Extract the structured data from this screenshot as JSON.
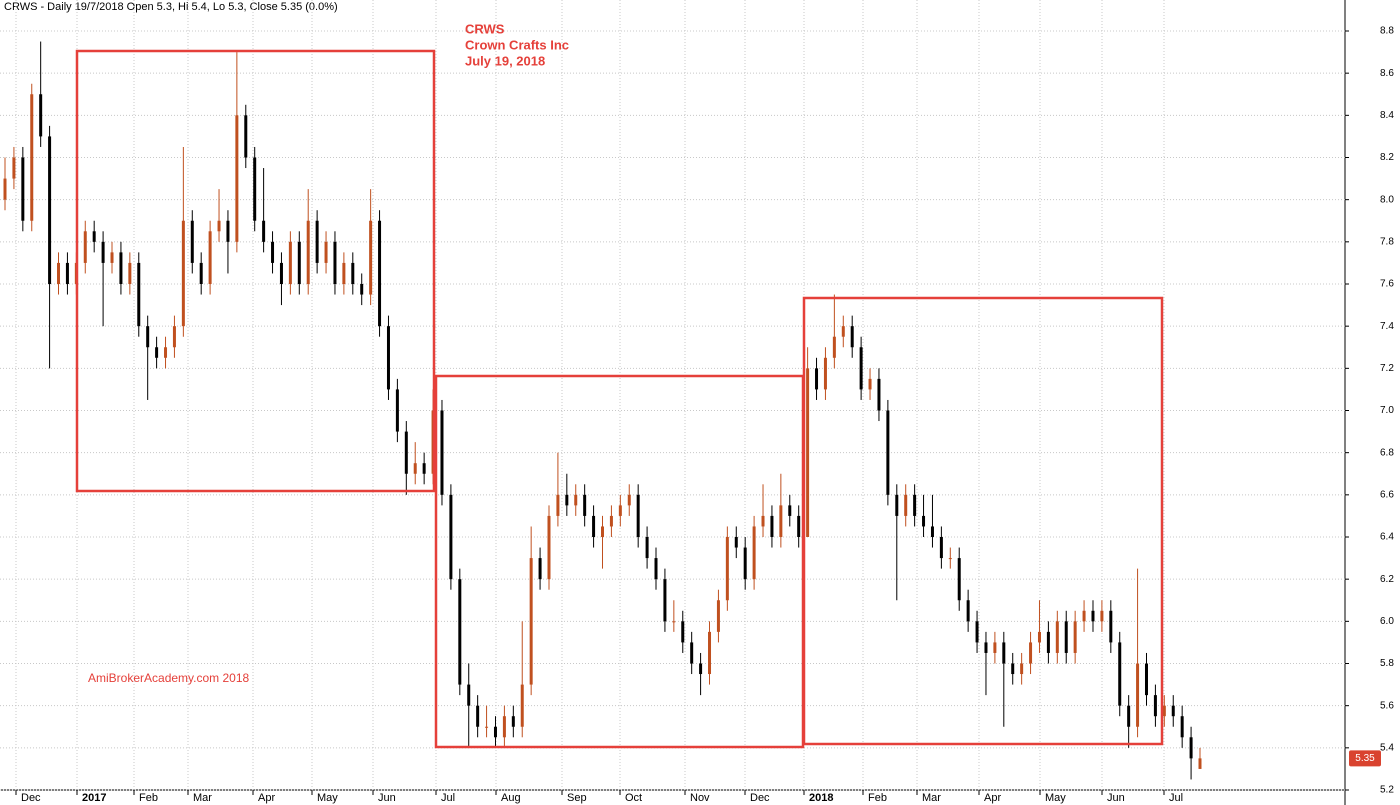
{
  "chart_data": {
    "type": "candlestick",
    "header": "CRWS - Daily 19/7/2018 Open 5.3, Hi 5.4, Lo 5.3, Close 5.35 (0.0%)",
    "annotations": [
      "CRWS",
      "Crown Crafts Inc",
      "July 19, 2018"
    ],
    "watermark": "AmiBrokerAcademy.com  2018",
    "x_labels": [
      "Dec",
      "2017",
      "Feb",
      "Mar",
      "Apr",
      "May",
      "Jun",
      "Jul",
      "Aug",
      "Sep",
      "Oct",
      "Nov",
      "Dec",
      "2018",
      "Feb",
      "Mar",
      "Apr",
      "May",
      "Jun",
      "Jul"
    ],
    "ylim": [
      5.2,
      8.8
    ],
    "yticks": [
      8.8,
      8.6,
      8.4,
      8.2,
      {
        "value": 8.0,
        "label": "8.0"
      },
      7.8,
      7.6,
      7.4,
      7.2,
      {
        "value": 7.0,
        "label": "7.0"
      },
      6.8,
      6.6,
      6.4,
      6.2,
      {
        "value": 6.0,
        "label": "6.0"
      },
      5.8,
      5.6,
      5.4,
      5.2
    ],
    "grid": true,
    "up_color": "#c0501f",
    "down_color": "#000000",
    "last_color": "#d9432f",
    "ohlc": [
      [
        8.0,
        8.2,
        7.95,
        8.1
      ],
      [
        8.1,
        8.25,
        8.05,
        8.2
      ],
      [
        8.2,
        8.25,
        7.85,
        7.9
      ],
      [
        7.9,
        8.55,
        7.85,
        8.5
      ],
      [
        8.5,
        8.75,
        8.25,
        8.3
      ],
      [
        8.3,
        8.35,
        7.2,
        7.6
      ],
      [
        7.6,
        7.75,
        7.55,
        7.7
      ],
      [
        7.7,
        7.75,
        7.55,
        7.6
      ],
      [
        7.6,
        7.75,
        7.55,
        7.7
      ],
      [
        7.7,
        7.9,
        7.65,
        7.85
      ],
      [
        7.85,
        7.9,
        7.75,
        7.8
      ],
      [
        7.8,
        7.85,
        7.4,
        7.7
      ],
      [
        7.7,
        7.8,
        7.65,
        7.75
      ],
      [
        7.75,
        7.8,
        7.55,
        7.6
      ],
      [
        7.6,
        7.75,
        7.55,
        7.7
      ],
      [
        7.7,
        7.75,
        7.35,
        7.4
      ],
      [
        7.4,
        7.45,
        7.05,
        7.3
      ],
      [
        7.3,
        7.35,
        7.2,
        7.25
      ],
      [
        7.25,
        7.35,
        7.2,
        7.3
      ],
      [
        7.3,
        7.45,
        7.25,
        7.4
      ],
      [
        7.4,
        8.25,
        7.35,
        7.9
      ],
      [
        7.9,
        7.95,
        7.65,
        7.7
      ],
      [
        7.7,
        7.75,
        7.55,
        7.6
      ],
      [
        7.6,
        7.9,
        7.55,
        7.85
      ],
      [
        7.85,
        8.05,
        7.8,
        7.9
      ],
      [
        7.9,
        7.95,
        7.65,
        7.8
      ],
      [
        7.8,
        8.7,
        7.75,
        8.4
      ],
      [
        8.4,
        8.45,
        8.15,
        8.2
      ],
      [
        8.2,
        8.25,
        7.85,
        7.9
      ],
      [
        7.9,
        8.15,
        7.75,
        7.8
      ],
      [
        7.8,
        7.85,
        7.65,
        7.7
      ],
      [
        7.7,
        7.75,
        7.5,
        7.6
      ],
      [
        7.6,
        7.85,
        7.55,
        7.8
      ],
      [
        7.8,
        7.85,
        7.55,
        7.6
      ],
      [
        7.6,
        8.05,
        7.55,
        7.9
      ],
      [
        7.9,
        7.95,
        7.65,
        7.7
      ],
      [
        7.7,
        7.85,
        7.65,
        7.8
      ],
      [
        7.8,
        7.85,
        7.55,
        7.6
      ],
      [
        7.6,
        7.75,
        7.55,
        7.7
      ],
      [
        7.7,
        7.75,
        7.55,
        7.6
      ],
      [
        7.6,
        7.65,
        7.5,
        7.55
      ],
      [
        7.55,
        8.05,
        7.5,
        7.9
      ],
      [
        7.9,
        7.95,
        7.35,
        7.4
      ],
      [
        7.4,
        7.45,
        7.05,
        7.1
      ],
      [
        7.1,
        7.15,
        6.85,
        6.9
      ],
      [
        6.9,
        6.95,
        6.6,
        6.7
      ],
      [
        6.7,
        6.85,
        6.65,
        6.75
      ],
      [
        6.75,
        6.8,
        6.65,
        6.7
      ],
      [
        6.7,
        7.1,
        6.65,
        7.0
      ],
      [
        7.0,
        7.05,
        6.55,
        6.6
      ],
      [
        6.6,
        6.65,
        6.15,
        6.2
      ],
      [
        6.2,
        6.25,
        5.65,
        5.7
      ],
      [
        5.7,
        5.8,
        5.4,
        5.6
      ],
      [
        5.6,
        5.65,
        5.45,
        5.5
      ],
      [
        5.5,
        5.6,
        5.45,
        5.5
      ],
      [
        5.5,
        5.55,
        5.4,
        5.45
      ],
      [
        5.45,
        5.6,
        5.4,
        5.55
      ],
      [
        5.55,
        5.6,
        5.45,
        5.5
      ],
      [
        5.5,
        6.0,
        5.45,
        5.7
      ],
      [
        5.7,
        6.45,
        5.65,
        6.3
      ],
      [
        6.3,
        6.35,
        6.15,
        6.2
      ],
      [
        6.2,
        6.55,
        6.15,
        6.5
      ],
      [
        6.5,
        6.8,
        6.45,
        6.6
      ],
      [
        6.6,
        6.7,
        6.5,
        6.55
      ],
      [
        6.55,
        6.65,
        6.5,
        6.6
      ],
      [
        6.6,
        6.65,
        6.45,
        6.5
      ],
      [
        6.5,
        6.55,
        6.35,
        6.4
      ],
      [
        6.4,
        6.5,
        6.25,
        6.45
      ],
      [
        6.45,
        6.55,
        6.4,
        6.5
      ],
      [
        6.5,
        6.6,
        6.45,
        6.55
      ],
      [
        6.55,
        6.65,
        6.5,
        6.6
      ],
      [
        6.6,
        6.65,
        6.35,
        6.4
      ],
      [
        6.4,
        6.45,
        6.25,
        6.3
      ],
      [
        6.3,
        6.35,
        6.15,
        6.2
      ],
      [
        6.2,
        6.25,
        5.95,
        6.0
      ],
      [
        6.0,
        6.1,
        5.95,
        6.0
      ],
      [
        6.0,
        6.05,
        5.85,
        5.9
      ],
      [
        5.9,
        5.95,
        5.75,
        5.8
      ],
      [
        5.8,
        5.85,
        5.65,
        5.75
      ],
      [
        5.75,
        6.0,
        5.7,
        5.95
      ],
      [
        5.95,
        6.15,
        5.9,
        6.1
      ],
      [
        6.1,
        6.45,
        6.05,
        6.4
      ],
      [
        6.4,
        6.45,
        6.3,
        6.35
      ],
      [
        6.35,
        6.4,
        6.15,
        6.2
      ],
      [
        6.2,
        6.5,
        6.15,
        6.45
      ],
      [
        6.45,
        6.65,
        6.4,
        6.5
      ],
      [
        6.5,
        6.55,
        6.35,
        6.4
      ],
      [
        6.4,
        6.7,
        6.35,
        6.55
      ],
      [
        6.55,
        6.6,
        6.45,
        6.5
      ],
      [
        6.5,
        6.55,
        6.35,
        6.4
      ],
      [
        6.4,
        7.3,
        6.4,
        7.2
      ],
      [
        7.2,
        7.25,
        7.05,
        7.1
      ],
      [
        7.1,
        7.3,
        7.05,
        7.25
      ],
      [
        7.25,
        7.55,
        7.2,
        7.35
      ],
      [
        7.35,
        7.45,
        7.3,
        7.4
      ],
      [
        7.4,
        7.45,
        7.25,
        7.3
      ],
      [
        7.3,
        7.35,
        7.05,
        7.1
      ],
      [
        7.1,
        7.2,
        7.05,
        7.15
      ],
      [
        7.15,
        7.2,
        6.95,
        7.0
      ],
      [
        7.0,
        7.05,
        6.55,
        6.6
      ],
      [
        6.6,
        6.65,
        6.1,
        6.5
      ],
      [
        6.5,
        6.65,
        6.45,
        6.6
      ],
      [
        6.6,
        6.65,
        6.45,
        6.5
      ],
      [
        6.5,
        6.6,
        6.4,
        6.45
      ],
      [
        6.45,
        6.6,
        6.35,
        6.4
      ],
      [
        6.4,
        6.45,
        6.25,
        6.3
      ],
      [
        6.3,
        6.35,
        6.25,
        6.3
      ],
      [
        6.3,
        6.35,
        6.05,
        6.1
      ],
      [
        6.1,
        6.15,
        5.95,
        6.0
      ],
      [
        6.0,
        6.05,
        5.85,
        5.9
      ],
      [
        5.9,
        5.95,
        5.65,
        5.85
      ],
      [
        5.85,
        5.95,
        5.8,
        5.9
      ],
      [
        5.9,
        5.95,
        5.5,
        5.8
      ],
      [
        5.8,
        5.85,
        5.7,
        5.75
      ],
      [
        5.75,
        5.85,
        5.7,
        5.8
      ],
      [
        5.8,
        5.95,
        5.75,
        5.9
      ],
      [
        5.9,
        6.1,
        5.85,
        5.95
      ],
      [
        5.95,
        6.0,
        5.8,
        5.85
      ],
      [
        5.85,
        6.05,
        5.8,
        6.0
      ],
      [
        6.0,
        6.05,
        5.8,
        5.85
      ],
      [
        5.85,
        6.05,
        5.8,
        6.0
      ],
      [
        6.0,
        6.1,
        5.95,
        6.05
      ],
      [
        6.05,
        6.1,
        5.95,
        6.0
      ],
      [
        6.0,
        6.1,
        5.95,
        6.05
      ],
      [
        6.05,
        6.1,
        5.85,
        5.9
      ],
      [
        5.9,
        5.95,
        5.55,
        5.6
      ],
      [
        5.6,
        5.65,
        5.4,
        5.5
      ],
      [
        5.5,
        6.25,
        5.45,
        5.8
      ],
      [
        5.8,
        5.85,
        5.6,
        5.65
      ],
      [
        5.65,
        5.7,
        5.5,
        5.55
      ],
      [
        5.55,
        5.65,
        5.5,
        5.6
      ],
      [
        5.6,
        5.65,
        5.5,
        5.55
      ],
      [
        5.55,
        5.6,
        5.4,
        5.45
      ],
      [
        5.45,
        5.5,
        5.25,
        5.35
      ],
      [
        5.3,
        5.4,
        5.3,
        5.35
      ]
    ]
  }
}
